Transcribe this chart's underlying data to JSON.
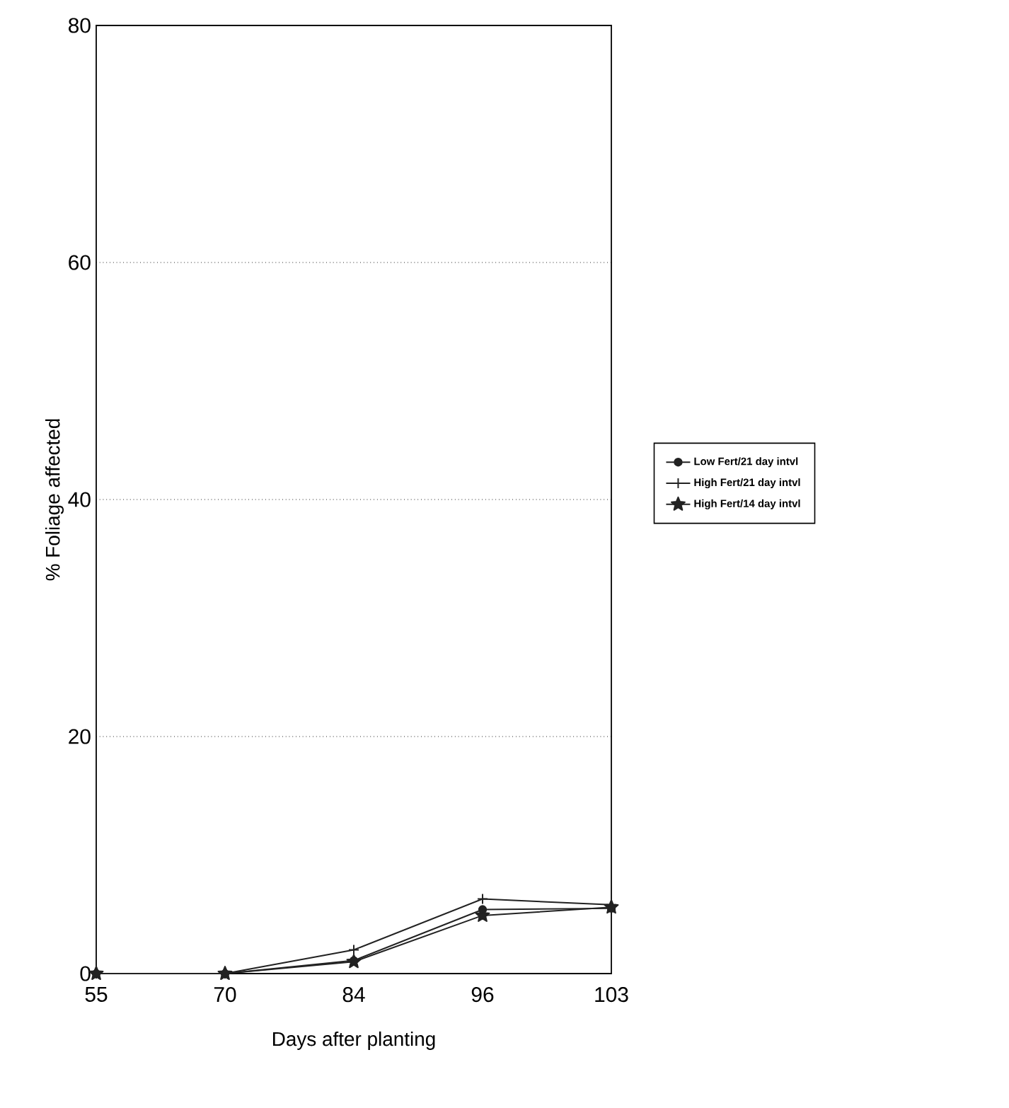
{
  "chart_data": {
    "type": "line",
    "xlabel": "Days after planting",
    "ylabel": "% Foliage affected",
    "categories": [
      "55",
      "70",
      "84",
      "96",
      "103"
    ],
    "series": [
      {
        "name": "Low Fert/21 day intvl",
        "color": "#222222",
        "marker": "circle",
        "values": [
          0,
          0,
          1.1,
          5.4,
          5.5
        ]
      },
      {
        "name": "High Fert/21 day intvl",
        "color": "#222222",
        "marker": "cross",
        "values": [
          0,
          0,
          2.0,
          6.3,
          5.8
        ]
      },
      {
        "name": "High Fert/14 day intvl",
        "color": "#222222",
        "marker": "star",
        "values": [
          0,
          0,
          1.0,
          4.9,
          5.6
        ]
      }
    ],
    "ylim": [
      0,
      80
    ],
    "yticks": [
      0,
      20,
      40,
      60,
      80
    ],
    "grid": "y",
    "legend": "right",
    "line_style": "solid"
  }
}
